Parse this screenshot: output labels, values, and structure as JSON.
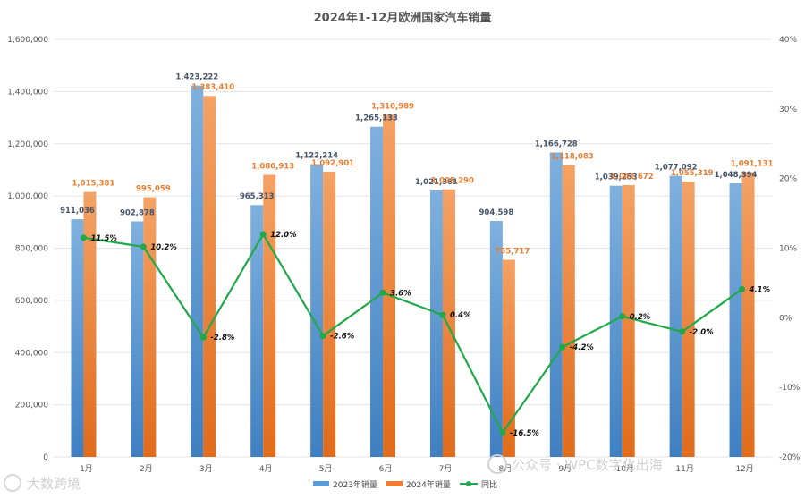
{
  "chart_data": {
    "type": "bar",
    "title": "2024年1-12月欧洲国家汽车销量",
    "categories": [
      "1月",
      "2月",
      "3月",
      "4月",
      "5月",
      "6月",
      "7月",
      "8月",
      "9月",
      "10月",
      "11月",
      "12月"
    ],
    "series": [
      {
        "name": "2023年销量",
        "type": "bar",
        "axis": "left",
        "values": [
          911036,
          902878,
          1423222,
          965313,
          1122214,
          1265133,
          1021381,
          904598,
          1166728,
          1039253,
          1077092,
          1048394
        ],
        "labels": [
          "911,036",
          "902,878",
          "1,423,222",
          "965,313",
          "1,122,214",
          "1,265,133",
          "1,021,381",
          "904,598",
          "1,166,728",
          "1,039,253",
          "1,077,092",
          "1,048,394"
        ]
      },
      {
        "name": "2024年销量",
        "type": "bar",
        "axis": "left",
        "values": [
          1015381,
          995059,
          1383410,
          1080913,
          1092901,
          1310989,
          1025290,
          755717,
          1118083,
          1041672,
          1055319,
          1091131
        ],
        "labels": [
          "1,015,381",
          "995,059",
          "1,383,410",
          "1,080,913",
          "1,092,901",
          "1,310,989",
          "1,025,290",
          "755,717",
          "1,118,083",
          "1,041,672",
          "1,055,319",
          "1,091,131"
        ]
      },
      {
        "name": "同比",
        "type": "line",
        "axis": "right",
        "values": [
          11.5,
          10.2,
          -2.8,
          12.0,
          -2.6,
          3.6,
          0.4,
          -16.5,
          -4.2,
          0.2,
          -2.0,
          4.1
        ],
        "labels": [
          "11.5%",
          "10.2%",
          "-2.8%",
          "12.0%",
          "-2.6%",
          "3.6%",
          "0.4%",
          "-16.5%",
          "-4.2%",
          "0.2%",
          "-2.0%",
          "4.1%"
        ]
      }
    ],
    "y_left": {
      "min": 0,
      "max": 1600000,
      "ticks": [
        0,
        200000,
        400000,
        600000,
        800000,
        1000000,
        1200000,
        1400000,
        1600000
      ],
      "tick_labels": [
        "0",
        "200,000",
        "400,000",
        "600,000",
        "800,000",
        "1,000,000",
        "1,200,000",
        "1,400,000",
        "1,600,000"
      ]
    },
    "y_right": {
      "min": -20,
      "max": 40,
      "ticks": [
        -20,
        -10,
        0,
        10,
        20,
        30,
        40
      ],
      "tick_labels": [
        "-20%",
        "-10%",
        "0%",
        "10%",
        "20%",
        "30%",
        "40%"
      ]
    },
    "grid": true,
    "legend_position": "bottom-center",
    "colors": {
      "bar2023": "#5b9bd5",
      "bar2024": "#ed7d31",
      "line": "#21a84a",
      "grid": "#e4e4e4"
    }
  },
  "watermarks": {
    "bottom_left": "大数跨境",
    "bottom_right": "公众号 · WPC数字化出海"
  }
}
